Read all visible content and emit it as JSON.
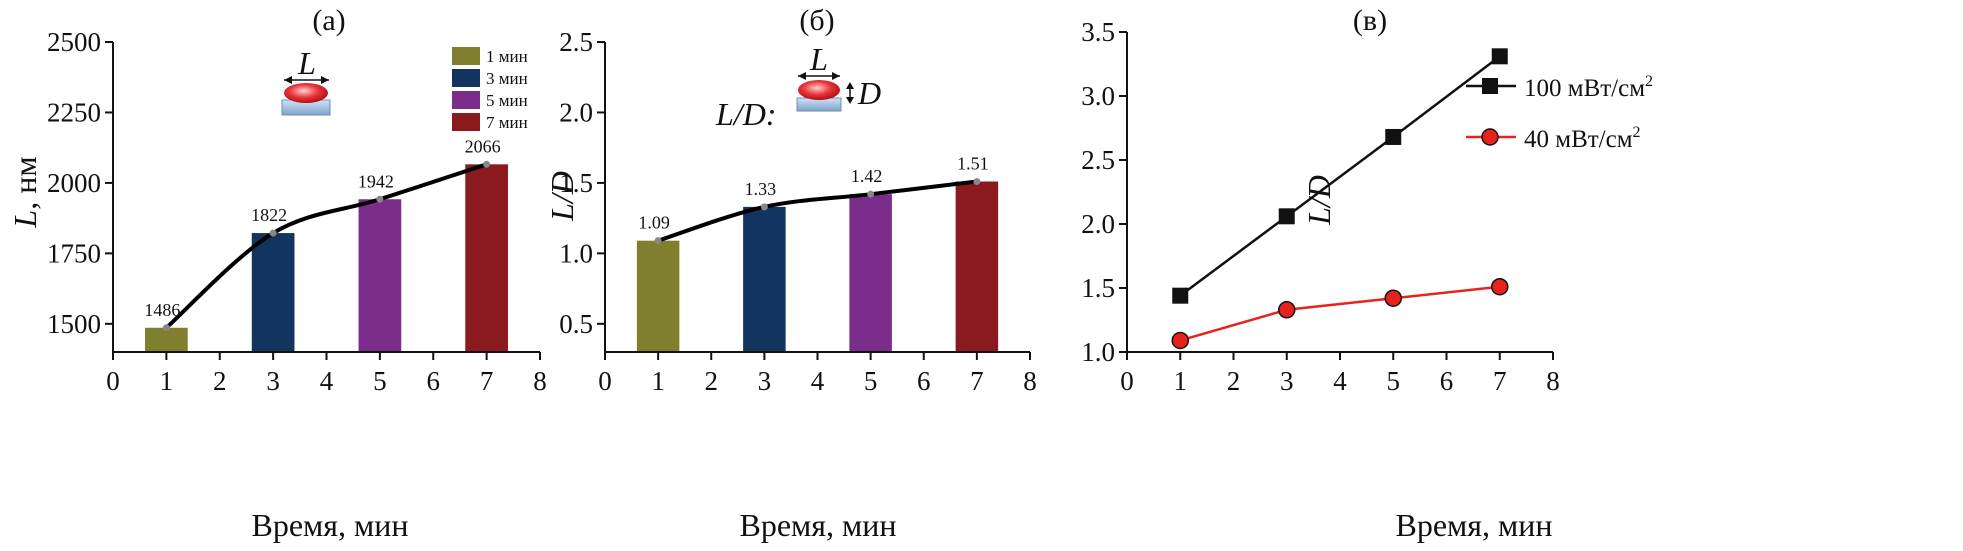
{
  "colors": {
    "c1": "#7f7f2e",
    "c3": "#12345e",
    "c5": "#7b2d8b",
    "c7": "#8b1a1f",
    "series_black": "#111111",
    "series_red": "#e8231d"
  },
  "chart_data": [
    {
      "type": "bar",
      "panel_label": "(а)",
      "x": [
        1,
        3,
        5,
        7
      ],
      "values": [
        1486,
        1822,
        1942,
        2066
      ],
      "data_labels": [
        "1486",
        "1822",
        "1942",
        "2066"
      ],
      "legend": [
        "1 мин",
        "3 мин",
        "5 мин",
        "7 мин"
      ],
      "xlabel": "Время, мин",
      "ylabel_sym": "L",
      "ylabel_unit": ", нм",
      "xlim": [
        0,
        8
      ],
      "ylim": [
        1400,
        2500
      ],
      "xticks": [
        "0",
        "1",
        "2",
        "3",
        "4",
        "5",
        "6",
        "7",
        "8"
      ],
      "yticks": [
        "1500",
        "1750",
        "2000",
        "2250",
        "2500"
      ],
      "inset_symbol": "L",
      "legend_position": "top-right",
      "fit_curve": true
    },
    {
      "type": "bar",
      "panel_label": "(б)",
      "x": [
        1,
        3,
        5,
        7
      ],
      "values": [
        1.09,
        1.33,
        1.42,
        1.51
      ],
      "data_labels": [
        "1.09",
        "1.33",
        "1.42",
        "1.51"
      ],
      "xlabel": "Время, мин",
      "ylabel": "L/D",
      "xlim": [
        0,
        8
      ],
      "ylim": [
        0.3,
        2.5
      ],
      "xticks": [
        "0",
        "1",
        "2",
        "3",
        "4",
        "5",
        "6",
        "7",
        "8"
      ],
      "yticks": [
        "0.5",
        "1.0",
        "1.5",
        "2.0",
        "2.5"
      ],
      "inset_prefix": "L/D:",
      "inset_L": "L",
      "inset_D": "D",
      "fit_curve": true
    },
    {
      "type": "line",
      "panel_label": "(в)",
      "x": [
        1,
        3,
        5,
        7
      ],
      "series": [
        {
          "name": "100 мВт/см",
          "sup": "2",
          "values": [
            1.44,
            2.06,
            2.68,
            3.31
          ]
        },
        {
          "name": "40 мВт/см",
          "sup": "2",
          "values": [
            1.09,
            1.33,
            1.42,
            1.51
          ]
        }
      ],
      "xlabel": "Время, мин",
      "ylabel": "L/D",
      "xlim": [
        0,
        8
      ],
      "ylim": [
        1.0,
        3.5
      ],
      "xticks": [
        "0",
        "1",
        "2",
        "3",
        "4",
        "5",
        "6",
        "7",
        "8"
      ],
      "yticks": [
        "1.0",
        "1.5",
        "2.0",
        "2.5",
        "3.0",
        "3.5"
      ],
      "legend_position": "top-left"
    }
  ]
}
